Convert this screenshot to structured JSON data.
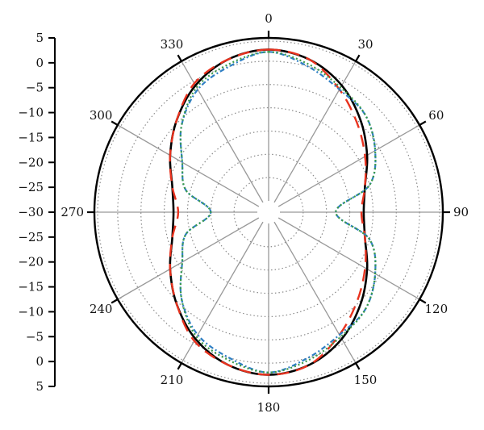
{
  "chart_data": {
    "type": "polar-line",
    "title": "",
    "radial_axis": {
      "ticks": [
        "5",
        "0",
        "−5",
        "−10",
        "−15",
        "−20",
        "−25",
        "−30",
        "−25",
        "−20",
        "−15",
        "−10",
        "−5",
        "0",
        "5"
      ],
      "range": [
        -30,
        5
      ],
      "tick_step": 5
    },
    "angular_axis": {
      "labels": [
        "0",
        "30",
        "60",
        "90",
        "120",
        "150",
        "180",
        "210",
        "240",
        "270",
        "300",
        "330"
      ],
      "direction": "clockwise",
      "zero_at": "top",
      "grid": true
    },
    "series": [
      {
        "style": "solid",
        "color": "#000000",
        "theta": [
          0,
          15,
          30,
          45,
          60,
          75,
          90,
          105,
          120,
          135,
          150,
          165,
          180,
          195,
          210,
          225,
          240,
          255,
          270,
          285,
          300,
          315,
          330,
          345
        ],
        "r": [
          2.5,
          1.5,
          -1,
          -4.5,
          -8,
          -11,
          -12,
          -11,
          -8,
          -4.5,
          -1,
          1.5,
          2.5,
          1.5,
          -1,
          -4.5,
          -8,
          -11,
          -12,
          -11,
          -8,
          -4.5,
          -1,
          1.5
        ]
      },
      {
        "style": "dashed",
        "color": "#e8321e",
        "theta": [
          0,
          15,
          30,
          45,
          60,
          75,
          90,
          105,
          120,
          135,
          150,
          165,
          180,
          195,
          210,
          225,
          240,
          255,
          270,
          285,
          300,
          315,
          330,
          345
        ],
        "r": [
          2.5,
          1.5,
          -2,
          -5.5,
          -8.5,
          -11,
          -12.5,
          -11,
          -8.5,
          -5.5,
          -2,
          1.5,
          2.5,
          1.5,
          -0.5,
          -4.5,
          -8,
          -11,
          -13,
          -11,
          -8,
          -4.5,
          -0.5,
          1.5
        ]
      },
      {
        "style": "dash-dot",
        "color": "#2f7fc4",
        "theta": [
          0,
          15,
          30,
          45,
          60,
          75,
          90,
          105,
          120,
          135,
          150,
          165,
          180,
          195,
          210,
          225,
          240,
          255,
          270,
          285,
          300,
          315,
          330,
          345
        ],
        "r": [
          2,
          0,
          -2,
          -3,
          -6,
          -10,
          -18,
          -10,
          -6,
          -3,
          -2,
          0,
          2,
          0,
          -2,
          -6,
          -11,
          -14,
          -20,
          -14,
          -11,
          -6,
          -2,
          0
        ]
      },
      {
        "style": "dotted",
        "color": "#3a9a48",
        "theta": [
          0,
          15,
          30,
          45,
          60,
          75,
          90,
          105,
          120,
          135,
          150,
          165,
          180,
          195,
          210,
          225,
          240,
          255,
          270,
          285,
          300,
          315,
          330,
          345
        ],
        "r": [
          2,
          0.5,
          -1.5,
          -3,
          -6,
          -10,
          -18,
          -10,
          -6,
          -3,
          -1.5,
          0.5,
          2,
          0.5,
          -1.5,
          -6,
          -11,
          -14,
          -20,
          -14,
          -11,
          -6,
          -1.5,
          0.5
        ]
      }
    ]
  }
}
